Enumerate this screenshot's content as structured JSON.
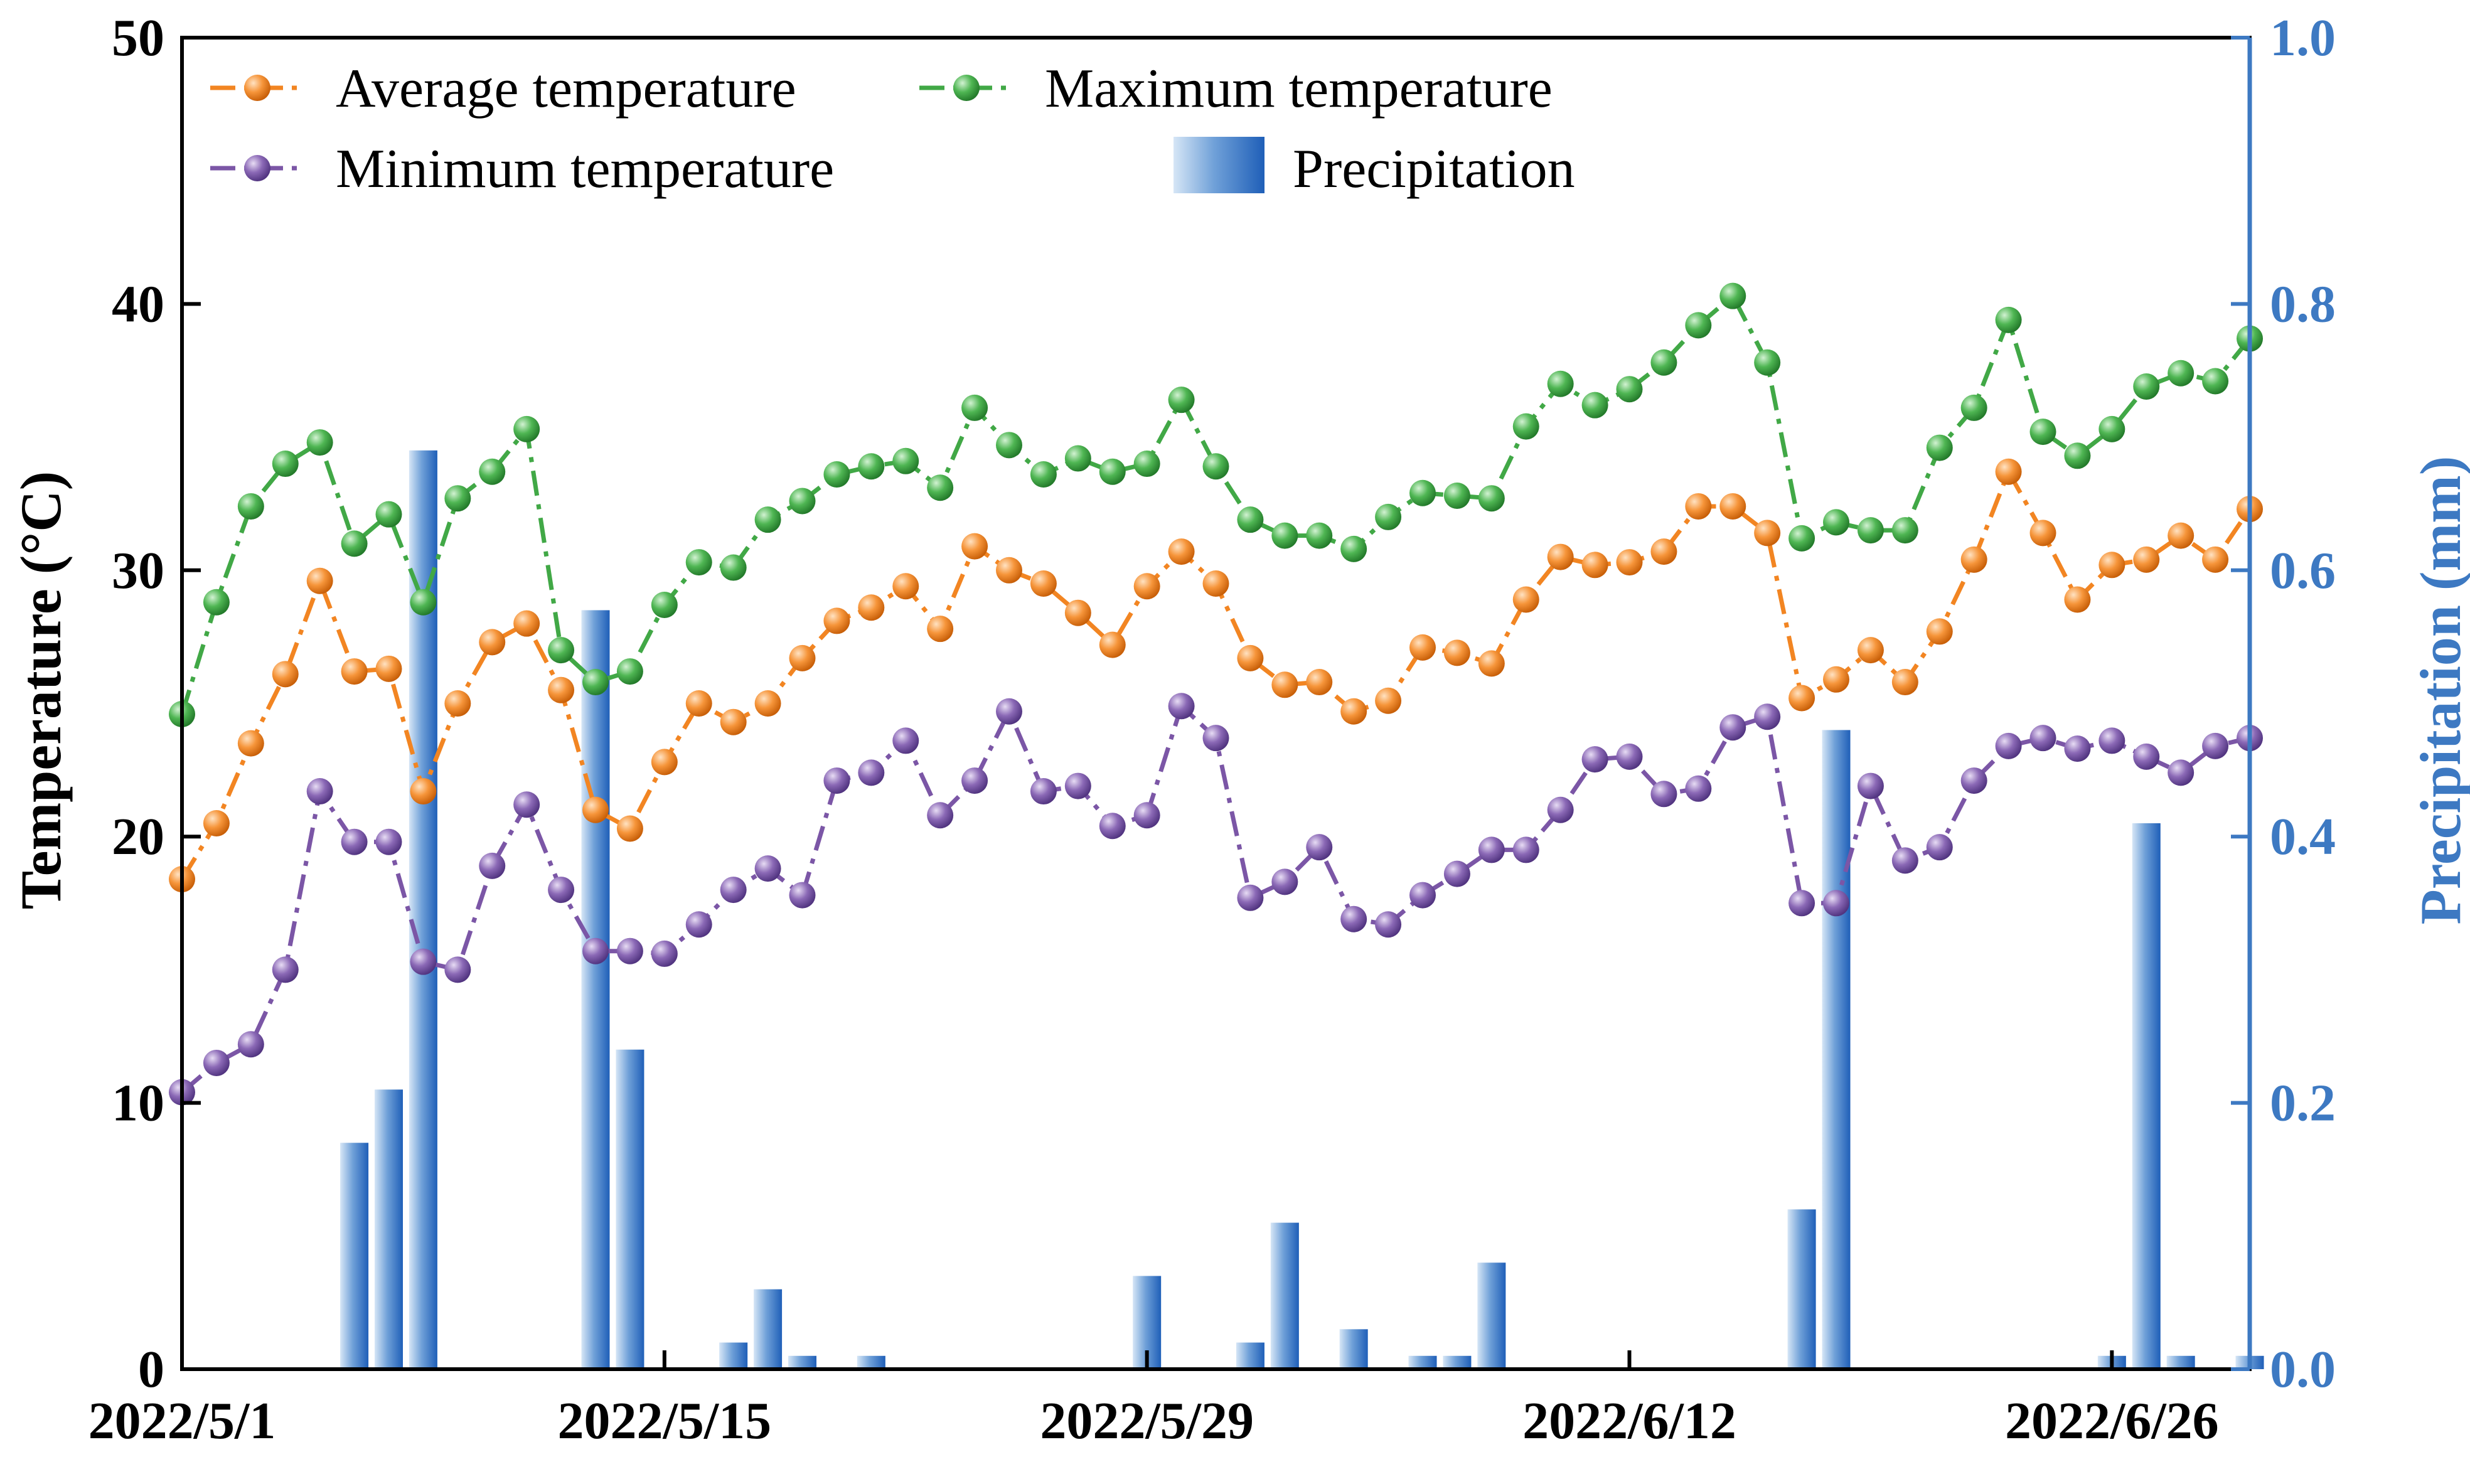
{
  "chart_data": {
    "type": "line",
    "title": "",
    "x": [
      "5/1",
      "5/2",
      "5/3",
      "5/4",
      "5/5",
      "5/6",
      "5/7",
      "5/8",
      "5/9",
      "5/10",
      "5/11",
      "5/12",
      "5/13",
      "5/14",
      "5/15",
      "5/16",
      "5/17",
      "5/18",
      "5/19",
      "5/20",
      "5/21",
      "5/22",
      "5/23",
      "5/24",
      "5/25",
      "5/26",
      "5/27",
      "5/28",
      "5/29",
      "5/30",
      "5/31",
      "6/1",
      "6/2",
      "6/3",
      "6/4",
      "6/5",
      "6/6",
      "6/7",
      "6/8",
      "6/9",
      "6/10",
      "6/11",
      "6/12",
      "6/13",
      "6/14",
      "6/15",
      "6/16",
      "6/17",
      "6/18",
      "6/19",
      "6/20",
      "6/21",
      "6/22",
      "6/23",
      "6/24",
      "6/25",
      "6/26",
      "6/27",
      "6/28",
      "6/29",
      "6/30"
    ],
    "x_tick_labels": [
      "2022/5/1",
      "2022/5/15",
      "2022/5/29",
      "2022/6/12",
      "2022/6/26"
    ],
    "x_tick_index": [
      0,
      14,
      28,
      42,
      56
    ],
    "ylabel": "Temperature (°C)",
    "ylabel_right": "Precipitation (mm)",
    "ylim": [
      0,
      50
    ],
    "ylim_right": [
      0,
      1.0
    ],
    "yticks": [
      "0",
      "10",
      "20",
      "30",
      "40",
      "50"
    ],
    "yticks_right": [
      "0.0",
      "0.2",
      "0.4",
      "0.6",
      "0.8",
      "1.0"
    ],
    "legend_position": "top-left",
    "series": [
      {
        "name": "Average temperature",
        "color": "#f28522",
        "axis": "left",
        "values": [
          18.4,
          20.5,
          23.5,
          26.1,
          29.6,
          26.2,
          26.3,
          21.7,
          25.0,
          27.3,
          28.0,
          25.5,
          21.0,
          20.3,
          22.8,
          25.0,
          24.3,
          25.0,
          26.7,
          28.1,
          28.6,
          29.4,
          27.8,
          30.9,
          30.0,
          29.5,
          28.4,
          27.2,
          29.4,
          30.7,
          29.5,
          26.7,
          25.7,
          25.8,
          24.7,
          25.1,
          27.1,
          26.9,
          26.5,
          28.9,
          30.5,
          30.2,
          30.3,
          30.7,
          32.4,
          32.4,
          31.4,
          25.2,
          25.9,
          27.0,
          25.8,
          27.7,
          30.4,
          33.7,
          31.4,
          28.9,
          30.2,
          30.4,
          31.3,
          30.4,
          32.3
        ]
      },
      {
        "name": "Maximum temperature",
        "color": "#41a846",
        "axis": "left",
        "values": [
          24.6,
          28.8,
          32.4,
          34.0,
          34.8,
          31.0,
          32.1,
          28.8,
          32.7,
          33.7,
          35.3,
          27.0,
          25.8,
          26.2,
          28.7,
          30.3,
          30.1,
          31.9,
          32.6,
          33.6,
          33.9,
          34.1,
          33.1,
          36.1,
          34.7,
          33.6,
          34.2,
          33.7,
          34.0,
          36.4,
          33.9,
          31.9,
          31.3,
          31.3,
          30.8,
          32.0,
          32.9,
          32.8,
          32.7,
          35.4,
          37.0,
          36.2,
          36.8,
          37.8,
          39.2,
          40.3,
          37.8,
          31.2,
          31.8,
          31.5,
          31.5,
          34.6,
          36.1,
          39.4,
          35.2,
          34.3,
          35.3,
          36.9,
          37.4,
          37.1,
          38.7
        ]
      },
      {
        "name": "Minimum temperature",
        "color": "#7b56a6",
        "axis": "left",
        "values": [
          10.4,
          11.5,
          12.2,
          15.0,
          21.7,
          19.8,
          19.8,
          15.3,
          15.0,
          18.9,
          21.2,
          18.0,
          15.7,
          15.7,
          15.6,
          16.7,
          18.0,
          18.8,
          17.8,
          22.1,
          22.4,
          23.6,
          20.8,
          22.1,
          24.7,
          21.7,
          21.9,
          20.4,
          20.8,
          24.9,
          23.7,
          17.7,
          18.3,
          19.6,
          16.9,
          16.7,
          17.8,
          18.6,
          19.5,
          19.5,
          21.0,
          22.9,
          23.0,
          21.6,
          21.8,
          24.1,
          24.5,
          17.5,
          17.5,
          21.9,
          19.1,
          19.6,
          22.1,
          23.4,
          23.7,
          23.3,
          23.6,
          23.0,
          22.4,
          23.4,
          23.7
        ]
      }
    ],
    "bars": {
      "name": "Precipitation",
      "axis": "right",
      "values": [
        0,
        0,
        0,
        0,
        0,
        0.17,
        0.21,
        0.69,
        0,
        0,
        0,
        0,
        0.57,
        0.24,
        0,
        0,
        0.02,
        0.06,
        0.01,
        0,
        0.01,
        0,
        0,
        0,
        0,
        0,
        0,
        0,
        0.07,
        0,
        0,
        0.02,
        0.11,
        0,
        0.03,
        0,
        0.01,
        0.01,
        0.08,
        0,
        0,
        0,
        0,
        0,
        0,
        0,
        0,
        0.12,
        0.48,
        0,
        0,
        0,
        0,
        0,
        0,
        0,
        0.01,
        0.41,
        0.01,
        0,
        0.01
      ]
    }
  }
}
